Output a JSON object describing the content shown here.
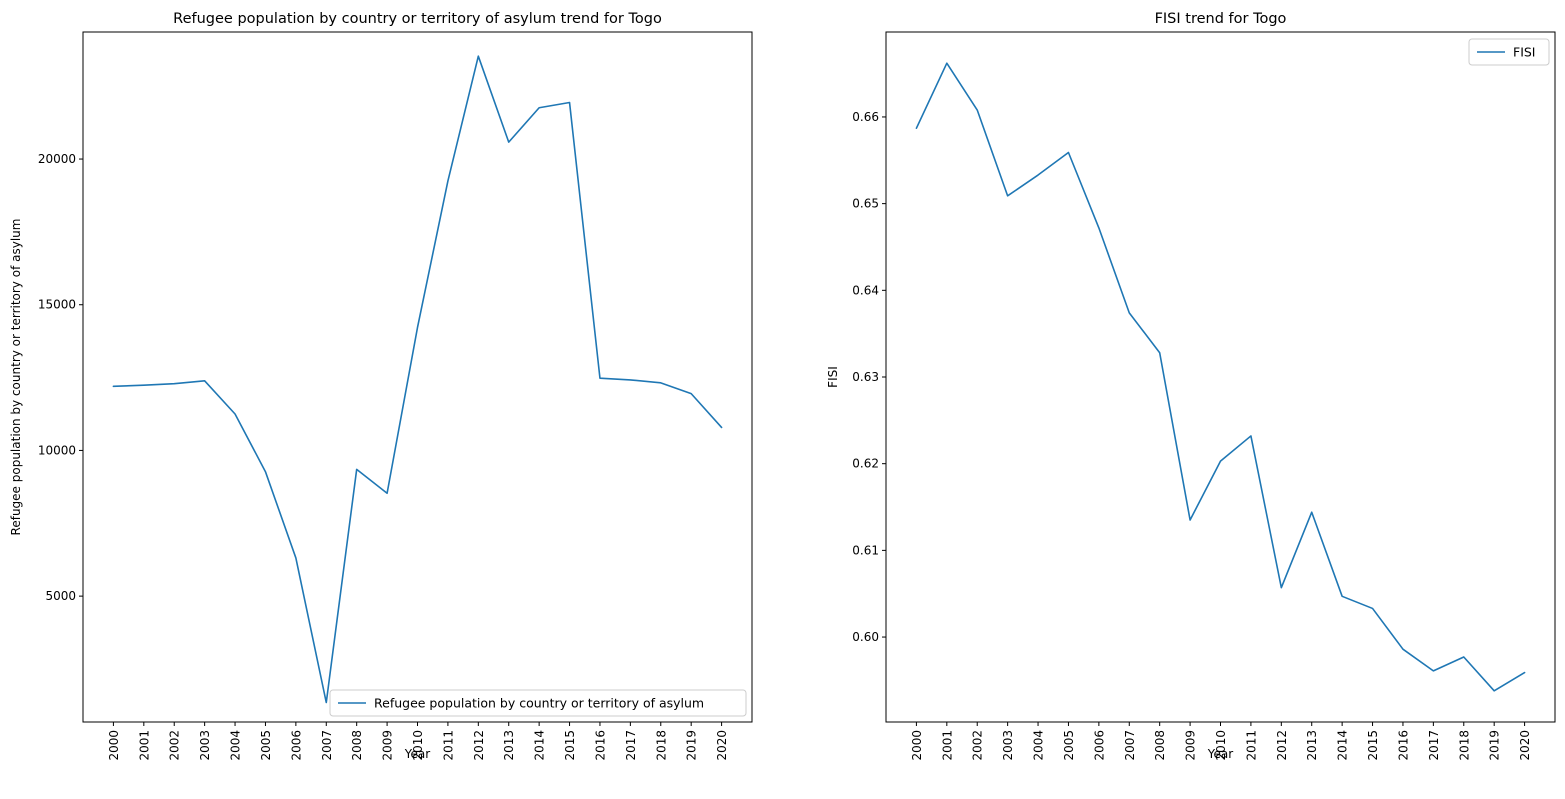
{
  "colors": {
    "line": "#1f77b4"
  },
  "chart_data": [
    {
      "type": "line",
      "title": "Refugee population by country or territory of asylum trend for Togo",
      "xlabel": "Year",
      "ylabel": "Refugee population by country or territory of asylum",
      "x": [
        "2000",
        "2001",
        "2002",
        "2003",
        "2004",
        "2005",
        "2006",
        "2007",
        "2008",
        "2009",
        "2010",
        "2011",
        "2012",
        "2013",
        "2014",
        "2015",
        "2016",
        "2017",
        "2018",
        "2019",
        "2020"
      ],
      "ylim": [
        680,
        24360
      ],
      "yticks": [
        5000,
        10000,
        15000,
        20000
      ],
      "grid": false,
      "legend": "lower-right",
      "series": [
        {
          "name": "Refugee population by country or territory of asylum",
          "values": [
            12200,
            12240,
            12290,
            12390,
            11250,
            9270,
            6310,
            1350,
            9350,
            8530,
            14220,
            19250,
            23530,
            20580,
            21760,
            21940,
            12480,
            12420,
            12320,
            11950,
            10790
          ]
        }
      ]
    },
    {
      "type": "line",
      "title": "FISI trend for Togo",
      "xlabel": "Year",
      "ylabel": "FISI",
      "x": [
        "2000",
        "2001",
        "2002",
        "2003",
        "2004",
        "2005",
        "2006",
        "2007",
        "2008",
        "2009",
        "2010",
        "2011",
        "2012",
        "2013",
        "2014",
        "2015",
        "2016",
        "2017",
        "2018",
        "2019",
        "2020"
      ],
      "ylim": [
        0.5902,
        0.6698
      ],
      "yticks": [
        0.6,
        0.61,
        0.62,
        0.63,
        0.64,
        0.65,
        0.66
      ],
      "ytick_labels": [
        "0.60",
        "0.61",
        "0.62",
        "0.63",
        "0.64",
        "0.65",
        "0.66"
      ],
      "grid": false,
      "legend": "top-right",
      "series": [
        {
          "name": "FISI",
          "values": [
            0.6587,
            0.6662,
            0.6608,
            0.6509,
            0.6533,
            0.6559,
            0.6472,
            0.6374,
            0.6328,
            0.6135,
            0.6203,
            0.6232,
            0.6057,
            0.6144,
            0.6047,
            0.6033,
            0.5986,
            0.5961,
            0.5977,
            0.5938,
            0.5959
          ]
        }
      ]
    }
  ]
}
